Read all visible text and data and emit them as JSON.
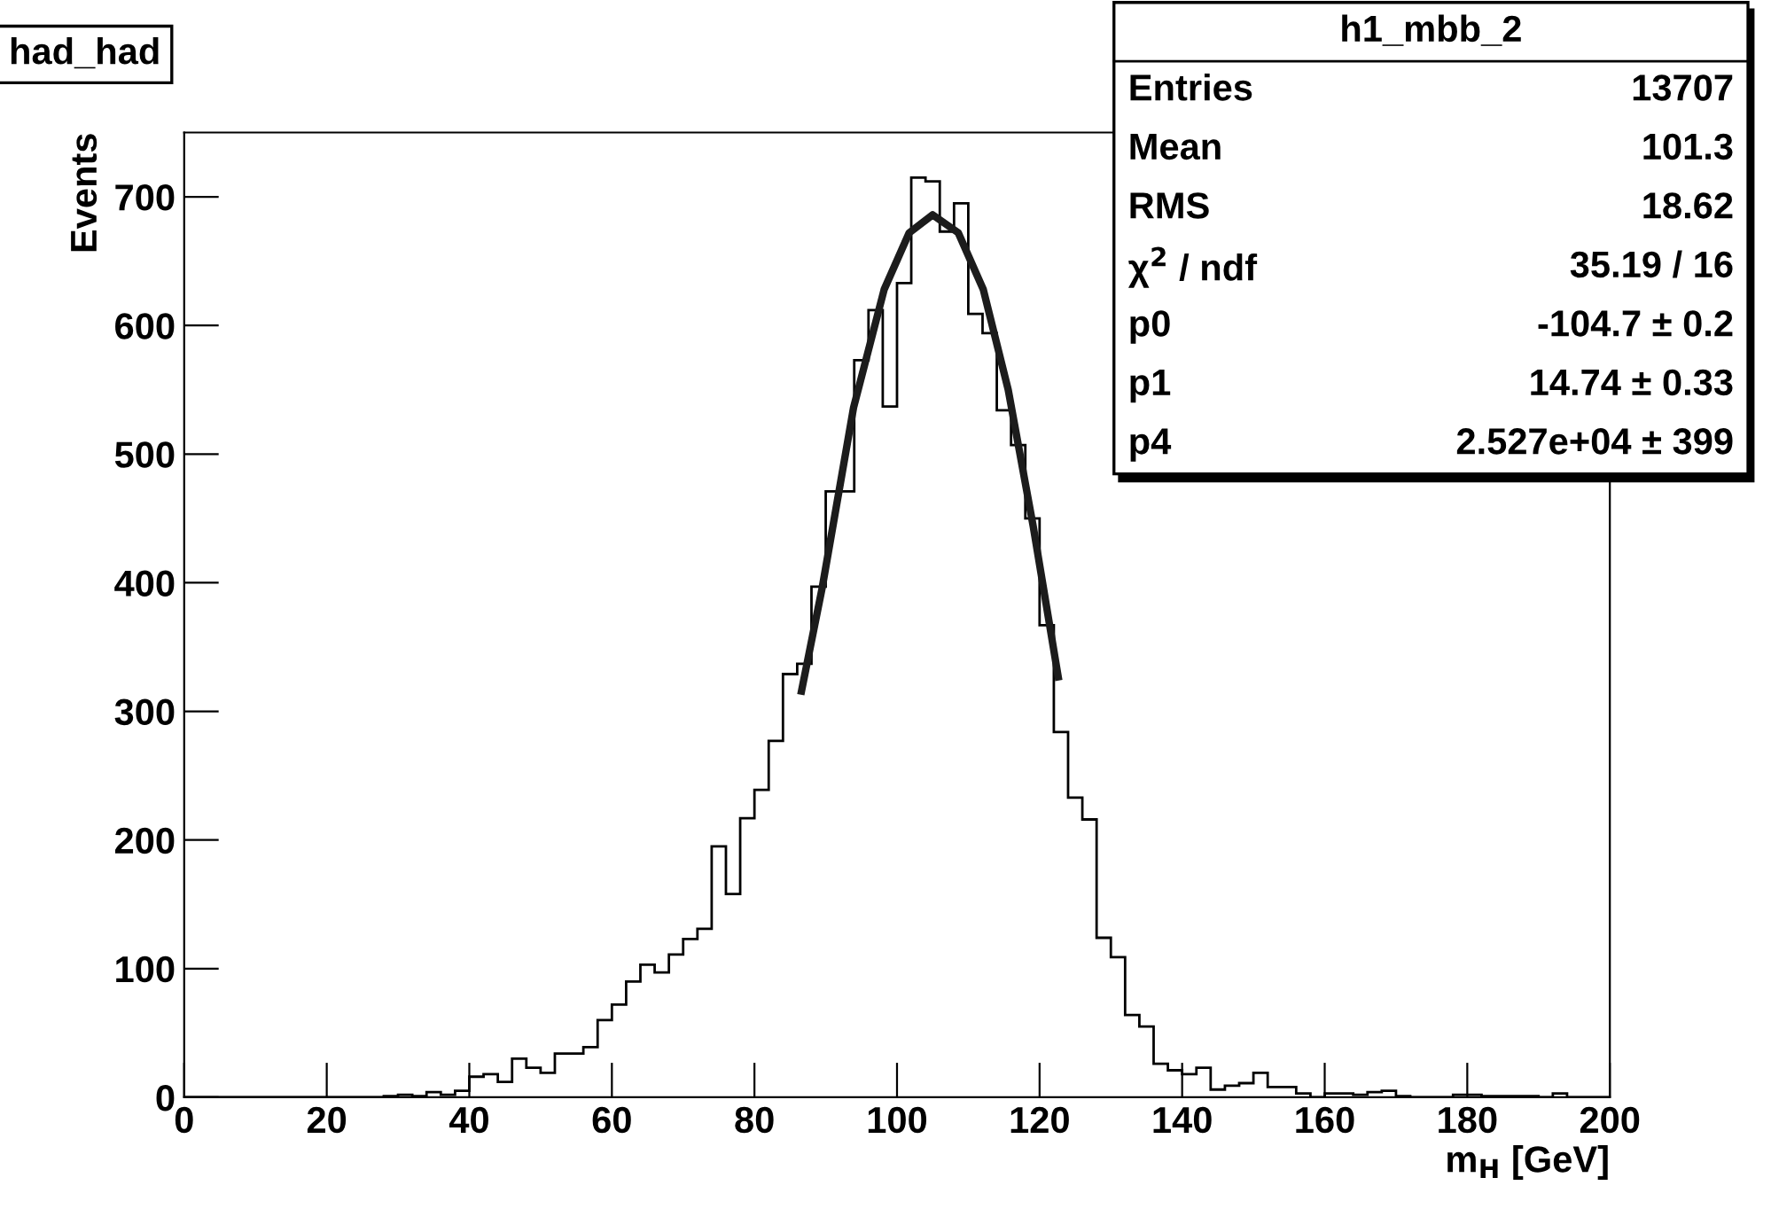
{
  "chart_data": {
    "type": "histogram",
    "title": "had_had",
    "xlabel": "m$_{H}$ [GeV]",
    "ylabel": "Events",
    "bins": [
      0,
      2,
      4,
      6,
      8,
      10,
      12,
      14,
      16,
      18,
      20,
      22,
      24,
      26,
      28,
      30,
      32,
      34,
      36,
      38,
      40,
      42,
      44,
      46,
      48,
      50,
      52,
      54,
      56,
      58,
      60,
      62,
      64,
      66,
      68,
      70,
      72,
      74,
      76,
      78,
      80,
      82,
      84,
      86,
      88,
      90,
      92,
      94,
      96,
      98,
      100,
      102,
      104,
      106,
      108,
      110,
      112,
      114,
      116,
      118,
      120,
      122,
      124,
      126,
      128,
      130,
      132,
      134,
      136,
      138,
      140,
      142,
      144,
      146,
      148,
      150,
      152,
      154,
      156,
      158,
      160,
      162,
      164,
      166,
      168,
      170,
      172,
      174,
      176,
      178,
      180,
      182,
      184,
      186,
      188,
      190,
      192,
      194,
      196,
      198,
      200
    ],
    "color": "#000000",
    "values": [
      0,
      0,
      0,
      0,
      0,
      0,
      0,
      0,
      0,
      0,
      0,
      0,
      0,
      0,
      1,
      2,
      1,
      4,
      2,
      5,
      16,
      18,
      12,
      30,
      23,
      19,
      34,
      34,
      39,
      60,
      72,
      90,
      103,
      97,
      111,
      123,
      131,
      195,
      158,
      217,
      239,
      277,
      329,
      337,
      397,
      471,
      471,
      573,
      612,
      537,
      633,
      715,
      712,
      673,
      695,
      609,
      594,
      534,
      507,
      450,
      367,
      284,
      233,
      216,
      124,
      109,
      64,
      55,
      26,
      21,
      18,
      23,
      6,
      9,
      11,
      19,
      8,
      8,
      3,
      0,
      3,
      3,
      2,
      4,
      5,
      1,
      0,
      0,
      0,
      2,
      2,
      1,
      1,
      1,
      1,
      0,
      3,
      0,
      0,
      0
    ],
    "series": [
      {
        "type": "line",
        "color": "#1c1c1c",
        "x": [
          86.5,
          89.5,
          93.9,
          98.2,
          101.7,
          105.0,
          108.6,
          112.1,
          115.6,
          119.1,
          122.7
        ],
        "values": [
          313,
          396,
          536,
          628,
          672,
          686,
          672,
          628,
          550,
          444,
          324
        ]
      }
    ],
    "xlim": [
      0,
      200
    ],
    "ylim": [
      0,
      750
    ],
    "xticks": [
      0,
      20,
      40,
      60,
      80,
      100,
      120,
      140,
      160,
      180,
      200
    ],
    "yticks": [
      0,
      100,
      200,
      300,
      400,
      500,
      600,
      700
    ],
    "annotations": [
      "h1_mbb_2",
      "Entries",
      "13707",
      "Mean",
      "101.3",
      "RMS",
      "18.62",
      "χ$^{2}$ / ndf",
      "35.19 / 16",
      "p0",
      "-104.7 ± 0.2",
      "p1",
      "14.74 ± 0.33",
      "p4",
      "2.527e+04 ± 399"
    ],
    "grid": false
  }
}
